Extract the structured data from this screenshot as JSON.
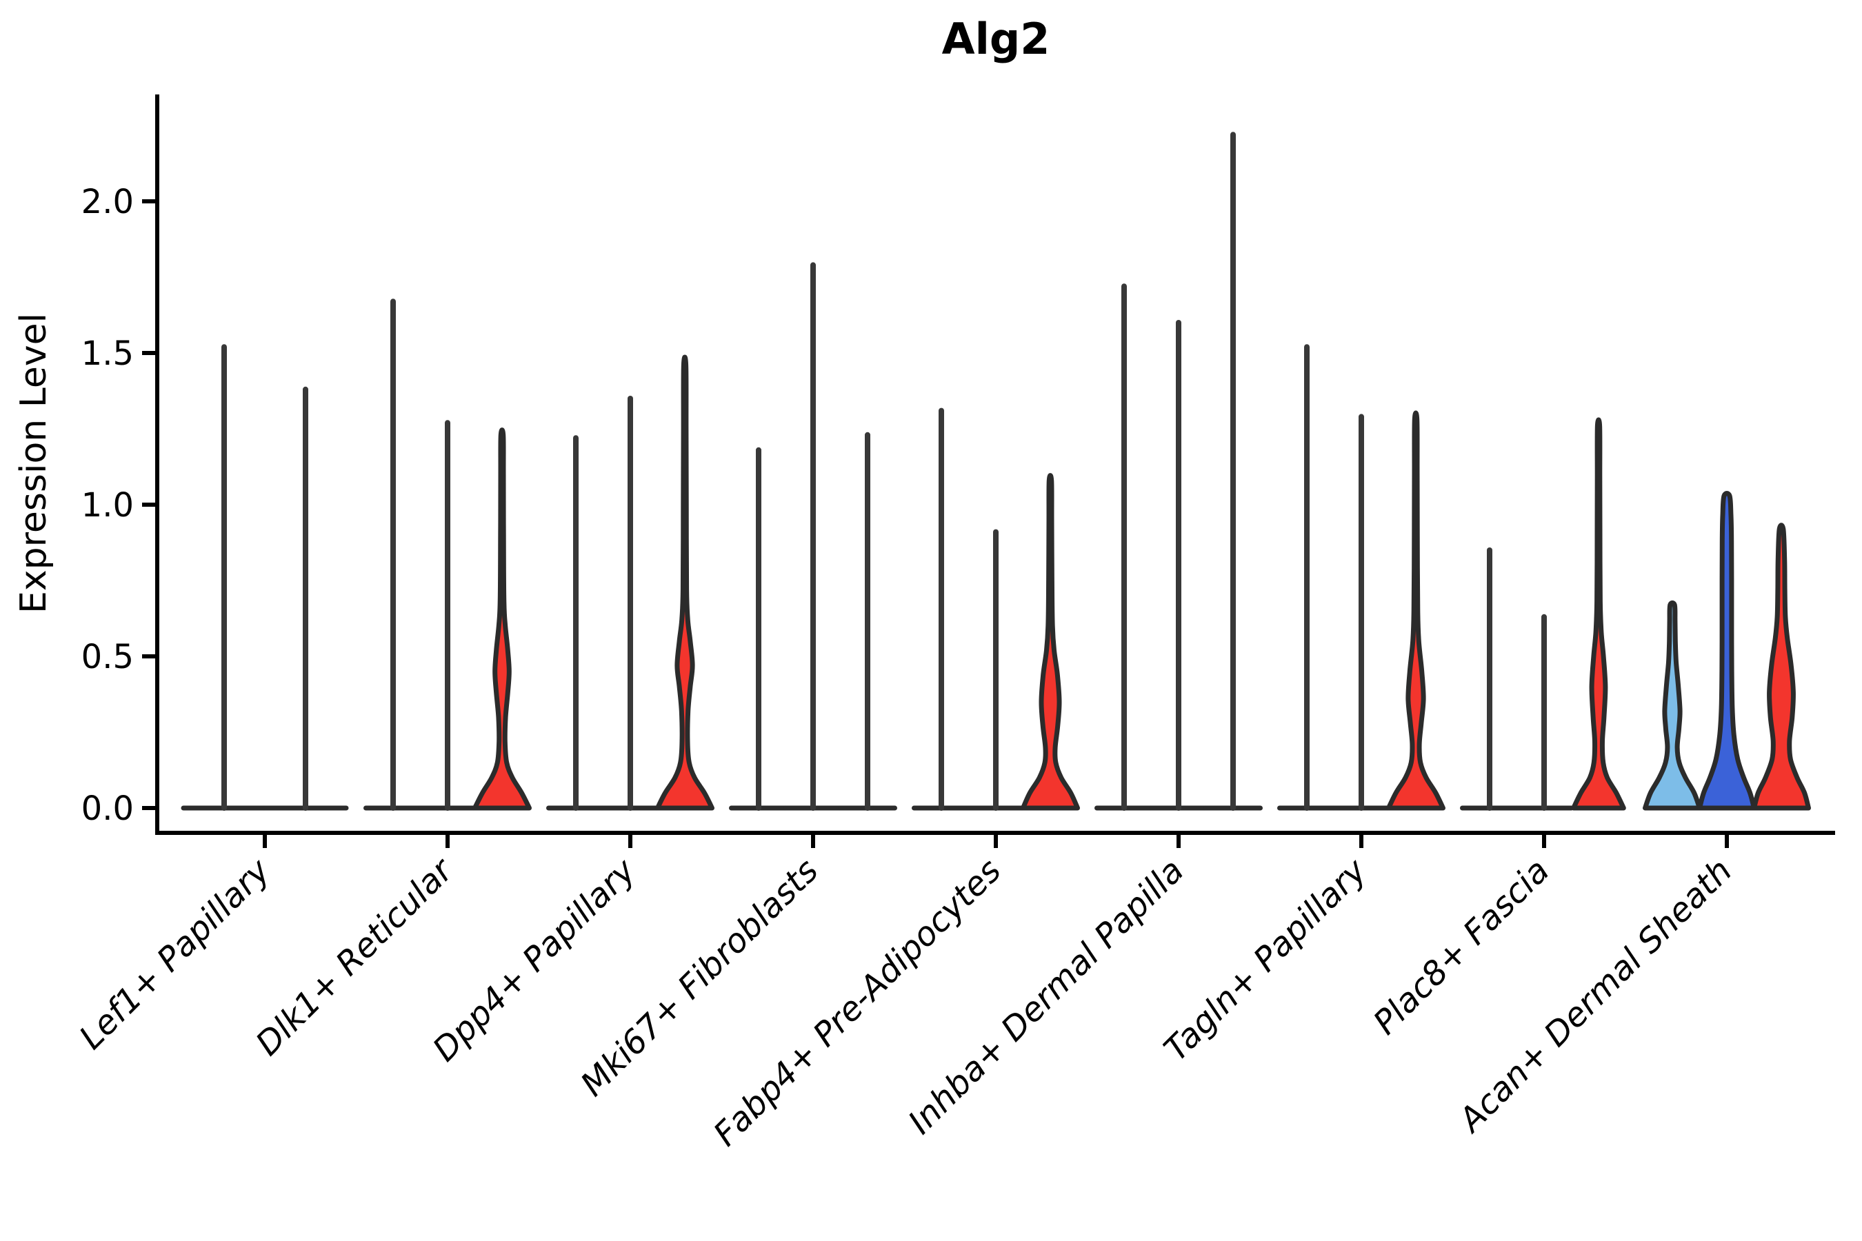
{
  "title": "Alg2",
  "y_axis": {
    "label": "Expression Level",
    "tick_labels": [
      "0.0",
      "0.5",
      "1.0",
      "1.5",
      "2.0"
    ],
    "tick_values": [
      0.0,
      0.5,
      1.0,
      1.5,
      2.0
    ]
  },
  "palette": {
    "red": "#f3352d",
    "light_blue": "#7dbde8",
    "royal_blue": "#3b62d8",
    "black_violin": "#383838",
    "outline": "#2b2b2b",
    "axis": "#000000"
  },
  "chart_data": {
    "type": "violin",
    "title": "Alg2",
    "xlabel": "",
    "ylabel": "Expression Level",
    "ylim": [
      -0.08,
      2.35
    ],
    "yticks": [
      0.0,
      0.5,
      1.0,
      1.5,
      2.0
    ],
    "grid": false,
    "legend": "none",
    "categories": [
      "Lef1+ Papillary",
      "Dlk1+ Reticular",
      "Dpp4+ Papillary",
      "Mki67+ Fibroblasts",
      "Fabp4+ Pre-Adipocytes",
      "Inhba+ Dermal Papilla",
      "Tagln+ Papillary",
      "Plac8+ Fascia",
      "Acan+ Dermal Sheath"
    ],
    "groups": [
      {
        "category": "Lef1+ Papillary",
        "violins": [
          {
            "color": "black_violin",
            "max": 1.52
          },
          {
            "color": "black_violin",
            "max": 1.38
          }
        ]
      },
      {
        "category": "Dlk1+ Reticular",
        "violins": [
          {
            "color": "black_violin",
            "max": 1.67
          },
          {
            "color": "black_violin",
            "max": 1.27
          },
          {
            "color": "red",
            "max": 1.23,
            "profile": [
              [
                0,
                1.0
              ],
              [
                0.05,
                0.72
              ],
              [
                0.1,
                0.38
              ],
              [
                0.15,
                0.17
              ],
              [
                0.22,
                0.11
              ],
              [
                0.3,
                0.13
              ],
              [
                0.38,
                0.21
              ],
              [
                0.45,
                0.26
              ],
              [
                0.52,
                0.21
              ],
              [
                0.6,
                0.12
              ],
              [
                0.68,
                0.07
              ],
              [
                0.9,
                0.055
              ],
              [
                1.1,
                0.05
              ],
              [
                1.23,
                0.042
              ]
            ]
          }
        ]
      },
      {
        "category": "Dpp4+ Papillary",
        "violins": [
          {
            "color": "black_violin",
            "max": 1.22
          },
          {
            "color": "black_violin",
            "max": 1.35
          },
          {
            "color": "red",
            "max": 1.46,
            "profile": [
              [
                0,
                1.0
              ],
              [
                0.05,
                0.72
              ],
              [
                0.1,
                0.36
              ],
              [
                0.15,
                0.16
              ],
              [
                0.22,
                0.1
              ],
              [
                0.32,
                0.12
              ],
              [
                0.4,
                0.2
              ],
              [
                0.47,
                0.28
              ],
              [
                0.55,
                0.2
              ],
              [
                0.62,
                0.11
              ],
              [
                0.72,
                0.065
              ],
              [
                1.0,
                0.055
              ],
              [
                1.25,
                0.048
              ],
              [
                1.46,
                0.04
              ]
            ]
          }
        ]
      },
      {
        "category": "Mki67+ Fibroblasts",
        "violins": [
          {
            "color": "black_violin",
            "max": 1.18
          },
          {
            "color": "black_violin",
            "max": 1.79
          },
          {
            "color": "black_violin",
            "max": 1.23
          }
        ]
      },
      {
        "category": "Fabp4+ Pre-Adipocytes",
        "violins": [
          {
            "color": "black_violin",
            "max": 1.31
          },
          {
            "color": "black_violin",
            "max": 0.91
          },
          {
            "color": "red",
            "max": 1.08,
            "profile": [
              [
                0,
                1.0
              ],
              [
                0.05,
                0.75
              ],
              [
                0.1,
                0.4
              ],
              [
                0.15,
                0.2
              ],
              [
                0.2,
                0.18
              ],
              [
                0.27,
                0.27
              ],
              [
                0.35,
                0.33
              ],
              [
                0.44,
                0.26
              ],
              [
                0.52,
                0.14
              ],
              [
                0.6,
                0.08
              ],
              [
                0.75,
                0.06
              ],
              [
                0.95,
                0.05
              ],
              [
                1.08,
                0.042
              ]
            ]
          }
        ]
      },
      {
        "category": "Inhba+ Dermal Papilla",
        "violins": [
          {
            "color": "black_violin",
            "max": 1.72
          },
          {
            "color": "black_violin",
            "max": 1.6
          },
          {
            "color": "black_violin",
            "max": 2.22
          }
        ]
      },
      {
        "category": "Tagln+ Papillary",
        "violins": [
          {
            "color": "black_violin",
            "max": 1.52
          },
          {
            "color": "black_violin",
            "max": 1.29
          },
          {
            "color": "red",
            "max": 1.28,
            "profile": [
              [
                0,
                1.0
              ],
              [
                0.05,
                0.73
              ],
              [
                0.1,
                0.38
              ],
              [
                0.15,
                0.17
              ],
              [
                0.21,
                0.13
              ],
              [
                0.28,
                0.2
              ],
              [
                0.36,
                0.28
              ],
              [
                0.45,
                0.22
              ],
              [
                0.55,
                0.11
              ],
              [
                0.65,
                0.07
              ],
              [
                0.9,
                0.055
              ],
              [
                1.1,
                0.05
              ],
              [
                1.28,
                0.042
              ]
            ]
          }
        ]
      },
      {
        "category": "Plac8+ Fascia",
        "violins": [
          {
            "color": "black_violin",
            "max": 0.85
          },
          {
            "color": "black_violin",
            "max": 0.63
          },
          {
            "color": "red",
            "max": 1.26,
            "profile": [
              [
                0,
                0.92
              ],
              [
                0.05,
                0.65
              ],
              [
                0.1,
                0.32
              ],
              [
                0.15,
                0.17
              ],
              [
                0.22,
                0.14
              ],
              [
                0.3,
                0.2
              ],
              [
                0.4,
                0.25
              ],
              [
                0.5,
                0.18
              ],
              [
                0.58,
                0.1
              ],
              [
                0.68,
                0.06
              ],
              [
                0.9,
                0.05
              ],
              [
                1.1,
                0.046
              ],
              [
                1.26,
                0.04
              ]
            ]
          }
        ]
      },
      {
        "category": "Acan+ Dermal Sheath",
        "violins": [
          {
            "color": "light_blue",
            "max": 0.67,
            "profile": [
              [
                0,
                1.0
              ],
              [
                0.05,
                0.8
              ],
              [
                0.1,
                0.48
              ],
              [
                0.15,
                0.25
              ],
              [
                0.2,
                0.18
              ],
              [
                0.26,
                0.24
              ],
              [
                0.32,
                0.28
              ],
              [
                0.4,
                0.22
              ],
              [
                0.48,
                0.14
              ],
              [
                0.55,
                0.11
              ],
              [
                0.62,
                0.1
              ],
              [
                0.67,
                0.08
              ]
            ]
          },
          {
            "color": "royal_blue",
            "max": 1.03,
            "profile": [
              [
                0,
                1.0
              ],
              [
                0.05,
                0.85
              ],
              [
                0.1,
                0.62
              ],
              [
                0.16,
                0.4
              ],
              [
                0.24,
                0.26
              ],
              [
                0.33,
                0.2
              ],
              [
                0.45,
                0.18
              ],
              [
                0.6,
                0.175
              ],
              [
                0.75,
                0.175
              ],
              [
                0.88,
                0.17
              ],
              [
                0.97,
                0.15
              ],
              [
                1.03,
                0.1
              ]
            ]
          },
          {
            "color": "red",
            "max": 0.92,
            "profile": [
              [
                0,
                1.0
              ],
              [
                0.05,
                0.85
              ],
              [
                0.1,
                0.58
              ],
              [
                0.16,
                0.34
              ],
              [
                0.22,
                0.3
              ],
              [
                0.3,
                0.4
              ],
              [
                0.38,
                0.44
              ],
              [
                0.47,
                0.36
              ],
              [
                0.56,
                0.22
              ],
              [
                0.63,
                0.15
              ],
              [
                0.72,
                0.13
              ],
              [
                0.82,
                0.12
              ],
              [
                0.92,
                0.07
              ]
            ]
          }
        ]
      }
    ]
  }
}
